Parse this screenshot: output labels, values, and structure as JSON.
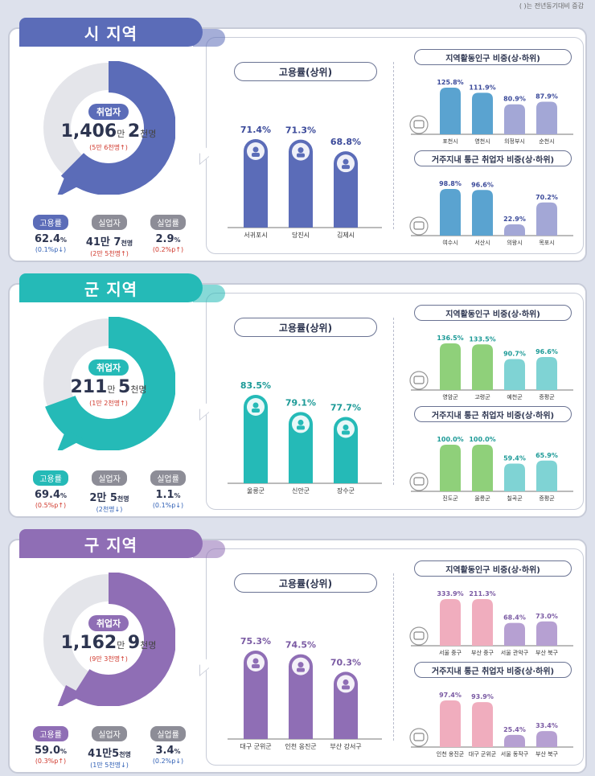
{
  "note": "( )는 전년동기대비 증감",
  "sections": [
    {
      "key": "si",
      "title": "시 지역",
      "color": "#5b6cb8",
      "light": "#8d9ad6",
      "donut_pct": 62.4,
      "employed_label": "취업자",
      "employed_main": "1,406",
      "employed_unit1": "만 ",
      "employed_mid": "2",
      "employed_unit2": "천명",
      "employed_change": "(5만 6천명↑)",
      "stats": [
        {
          "label": "고용률",
          "value": "62.4",
          "unit": "%",
          "change": "(0.1%p↓)",
          "dir": "down"
        },
        {
          "label": "실업자",
          "value": "41만 7",
          "unit": "천명",
          "change": "(2만 5천명↑)",
          "dir": "up"
        },
        {
          "label": "실업률",
          "value": "2.9",
          "unit": "%",
          "change": "(0.2%p↑)",
          "dir": "up"
        }
      ],
      "emp_title": "고용률(상위)",
      "chart_data": {
        "type": "bar",
        "title": "고용률(상위)",
        "categories": [
          "서귀포시",
          "당진시",
          "김제시"
        ],
        "values": [
          71.4,
          71.3,
          68.8
        ],
        "labels": [
          "71.4%",
          "71.3%",
          "68.8%"
        ]
      },
      "pop_title": "지역활동인구 비중(상·하위)",
      "pop_chart": {
        "type": "bar",
        "categories": [
          "포천시",
          "영천시",
          "의정부시",
          "순천시"
        ],
        "values": [
          125.8,
          111.9,
          80.9,
          87.9
        ],
        "labels": [
          "125.8%",
          "111.9%",
          "80.9%",
          "87.9%"
        ]
      },
      "com_title": "거주지내 통근 취업자 비중(상·하위)",
      "com_chart": {
        "type": "bar",
        "categories": [
          "여수시",
          "서산시",
          "의왕시",
          "목포시"
        ],
        "values": [
          98.8,
          96.6,
          22.9,
          70.2
        ],
        "labels": [
          "98.8%",
          "96.6%",
          "22.9%",
          "70.2%"
        ]
      },
      "top_colors": [
        "#5aa3d0",
        "#5aa3d0"
      ],
      "bot_colors": [
        "#a3a7d6",
        "#a3a7d6"
      ],
      "val_color": "#2d3550",
      "barval_color": "#3b4a9a"
    },
    {
      "key": "gun",
      "title": "군 지역",
      "color": "#25bab7",
      "light": "#7fd7d4",
      "donut_pct": 69.4,
      "employed_label": "취업자",
      "employed_main": "211",
      "employed_unit1": "만 ",
      "employed_mid": "5",
      "employed_unit2": "천명",
      "employed_change": "(1만 2천명↑)",
      "stats": [
        {
          "label": "고용률",
          "value": "69.4",
          "unit": "%",
          "change": "(0.5%p↑)",
          "dir": "up"
        },
        {
          "label": "실업자",
          "value": "2만 5",
          "unit": "천명",
          "change": "(2천명↓)",
          "dir": "down"
        },
        {
          "label": "실업률",
          "value": "1.1",
          "unit": "%",
          "change": "(0.1%p↓)",
          "dir": "down"
        }
      ],
      "emp_title": "고용률(상위)",
      "chart_data": {
        "type": "bar",
        "title": "고용률(상위)",
        "categories": [
          "울릉군",
          "신안군",
          "장수군"
        ],
        "values": [
          83.5,
          79.1,
          77.7
        ],
        "labels": [
          "83.5%",
          "79.1%",
          "77.7%"
        ]
      },
      "pop_title": "지역활동인구 비중(상·하위)",
      "pop_chart": {
        "type": "bar",
        "categories": [
          "영암군",
          "고령군",
          "예천군",
          "증평군"
        ],
        "values": [
          136.5,
          133.5,
          90.7,
          96.6
        ],
        "labels": [
          "136.5%",
          "133.5%",
          "90.7%",
          "96.6%"
        ]
      },
      "com_title": "거주지내 통근 취업자 비중(상·하위)",
      "com_chart": {
        "type": "bar",
        "categories": [
          "진도군",
          "울릉군",
          "칠곡군",
          "증평군"
        ],
        "values": [
          100.0,
          100.0,
          59.4,
          65.9
        ],
        "labels": [
          "100.0%",
          "100.0%",
          "59.4%",
          "65.9%"
        ]
      },
      "top_colors": [
        "#8fd07a",
        "#8fd07a"
      ],
      "bot_colors": [
        "#7fd3d4",
        "#7fd3d4"
      ],
      "val_color": "#2d3550",
      "barval_color": "#1c9a97"
    },
    {
      "key": "gu",
      "title": "구 지역",
      "color": "#8f6eb5",
      "light": "#b6a0d2",
      "donut_pct": 59.0,
      "employed_label": "취업자",
      "employed_main": "1,162",
      "employed_unit1": "만 ",
      "employed_mid": "9",
      "employed_unit2": "천명",
      "employed_change": "(9만 3천명↑)",
      "stats": [
        {
          "label": "고용률",
          "value": "59.0",
          "unit": "%",
          "change": "(0.3%p↑)",
          "dir": "up"
        },
        {
          "label": "실업자",
          "value": "41만5",
          "unit": "천명",
          "change": "(1만 5천명↓)",
          "dir": "down"
        },
        {
          "label": "실업률",
          "value": "3.4",
          "unit": "%",
          "change": "(0.2%p↓)",
          "dir": "down"
        }
      ],
      "emp_title": "고용률(상위)",
      "chart_data": {
        "type": "bar",
        "title": "고용률(상위)",
        "categories": [
          "대구 군위군",
          "인천 옹진군",
          "부산 강서구"
        ],
        "values": [
          75.3,
          74.5,
          70.3
        ],
        "labels": [
          "75.3%",
          "74.5%",
          "70.3%"
        ]
      },
      "pop_title": "지역활동인구 비중(상·하위)",
      "pop_chart": {
        "type": "bar",
        "categories": [
          "서울 중구",
          "부산 중구",
          "서울 관악구",
          "부산 북구"
        ],
        "values": [
          333.9,
          211.3,
          68.4,
          73.0
        ],
        "labels": [
          "333.9%",
          "211.3%",
          "68.4%",
          "73.0%"
        ]
      },
      "com_title": "거주지내 통근 취업자 비중(상·하위)",
      "com_chart": {
        "type": "bar",
        "categories": [
          "인천 옹진군",
          "대구 군위군",
          "서울 동작구",
          "부산 북구"
        ],
        "values": [
          97.4,
          93.9,
          25.4,
          33.4
        ],
        "labels": [
          "97.4%",
          "93.9%",
          "25.4%",
          "33.4%"
        ]
      },
      "top_colors": [
        "#f0adbe",
        "#f0adbe"
      ],
      "bot_colors": [
        "#b6a0d2",
        "#b6a0d2"
      ],
      "val_color": "#2d3550",
      "barval_color": "#7a5aa3"
    }
  ]
}
